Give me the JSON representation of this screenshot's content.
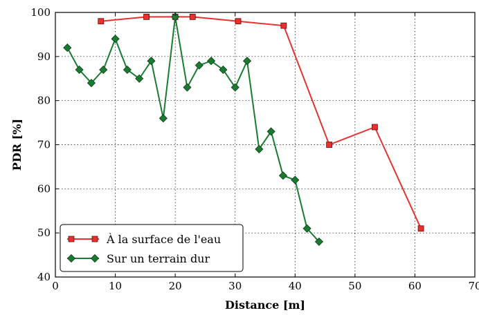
{
  "chart_data": {
    "type": "line",
    "xlabel": "Distance [m]",
    "ylabel": "PDR [%]",
    "xlim": [
      0,
      70
    ],
    "ylim": [
      40,
      100
    ],
    "xticks": [
      0,
      10,
      20,
      30,
      40,
      50,
      60,
      70
    ],
    "yticks": [
      40,
      50,
      60,
      70,
      80,
      90,
      100
    ],
    "grid": true,
    "legend_position": "bottom-left",
    "series": [
      {
        "name": "À la surface de l'eau",
        "color": "#e8312f",
        "marker": "square",
        "x": [
          7.6,
          15.2,
          20,
          22.9,
          30.5,
          38.1,
          45.7,
          53.3,
          61
        ],
        "y": [
          98,
          99,
          99,
          99,
          98,
          97,
          70,
          74,
          51
        ]
      },
      {
        "name": "Sur un terrain dur",
        "color": "#1a7a32",
        "marker": "diamond",
        "x": [
          2,
          4,
          6,
          8,
          10,
          12,
          14,
          16,
          18,
          20,
          22,
          24,
          26,
          28,
          30,
          32,
          34,
          36,
          38,
          40,
          42,
          44
        ],
        "y": [
          92,
          87,
          84,
          87,
          94,
          87,
          85,
          89,
          76,
          99,
          83,
          88,
          89,
          87,
          83,
          89,
          69,
          73,
          63,
          62,
          51,
          48
        ]
      }
    ]
  }
}
